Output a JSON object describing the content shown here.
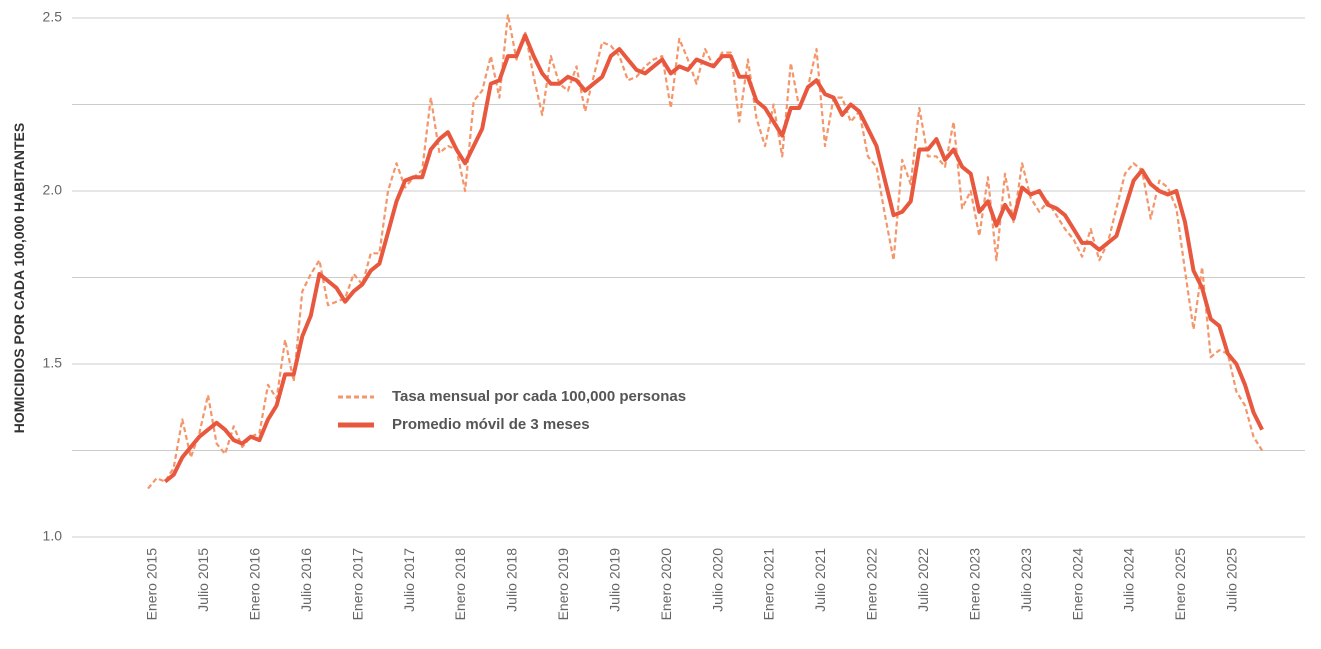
{
  "chart_data": {
    "type": "line",
    "y_label": "HOMICIDIOS POR CADA 100,000 HABITANTES",
    "categories": [
      "Enero 2015",
      null,
      null,
      null,
      null,
      null,
      "Julio 2015",
      null,
      null,
      null,
      null,
      null,
      "Enero 2016",
      null,
      null,
      null,
      null,
      null,
      "Julio 2016",
      null,
      null,
      null,
      null,
      null,
      "Enero 2017",
      null,
      null,
      null,
      null,
      null,
      "Julio 2017",
      null,
      null,
      null,
      null,
      null,
      "Enero 2018",
      null,
      null,
      null,
      null,
      null,
      "Julio 2018",
      null,
      null,
      null,
      null,
      null,
      "Enero 2019",
      null,
      null,
      null,
      null,
      null,
      "Julio 2019",
      null,
      null,
      null,
      null,
      null,
      "Enero 2020",
      null,
      null,
      null,
      null,
      null,
      "Julio 2020",
      null,
      null,
      null,
      null,
      null,
      "Enero 2021",
      null,
      null,
      null,
      null,
      null,
      "Julio 2021",
      null,
      null,
      null,
      null,
      null,
      "Enero 2022",
      null,
      null,
      null,
      null,
      null,
      "Julio 2022",
      null,
      null,
      null,
      null,
      null,
      "Enero 2023",
      null,
      null,
      null,
      null,
      null,
      "Julio 2023",
      null,
      null,
      null,
      null,
      null,
      "Enero 2024",
      null,
      null,
      null,
      null,
      null,
      "Julio 2024",
      null,
      null,
      null,
      null,
      null,
      "Enero 2025",
      null,
      null,
      null,
      null,
      null,
      "Julio 2025",
      null,
      null,
      null,
      null
    ],
    "series": [
      {
        "name": "Tasa mensual por cada 100,000 personas",
        "color": "#f4956a",
        "style": "dashed",
        "values": [
          1.14,
          1.17,
          1.16,
          1.2,
          1.34,
          1.23,
          1.3,
          1.41,
          1.27,
          1.24,
          1.32,
          1.26,
          1.29,
          1.3,
          1.44,
          1.4,
          1.57,
          1.45,
          1.71,
          1.76,
          1.8,
          1.67,
          1.68,
          1.69,
          1.76,
          1.73,
          1.82,
          1.82,
          2.0,
          2.08,
          2.01,
          2.04,
          2.06,
          2.27,
          2.11,
          2.13,
          2.12,
          2.0,
          2.26,
          2.29,
          2.39,
          2.27,
          2.51,
          2.38,
          2.46,
          2.33,
          2.22,
          2.39,
          2.31,
          2.29,
          2.36,
          2.23,
          2.33,
          2.43,
          2.42,
          2.39,
          2.32,
          2.33,
          2.36,
          2.38,
          2.39,
          2.24,
          2.44,
          2.38,
          2.31,
          2.41,
          2.36,
          2.4,
          2.4,
          2.2,
          2.38,
          2.21,
          2.13,
          2.25,
          2.1,
          2.37,
          2.24,
          2.3,
          2.41,
          2.13,
          2.27,
          2.27,
          2.2,
          2.23,
          2.1,
          2.07,
          1.93,
          1.8,
          2.09,
          2.02,
          2.24,
          2.1,
          2.1,
          2.07,
          2.2,
          1.95,
          2.0,
          1.87,
          2.04,
          1.8,
          2.05,
          1.91,
          2.08,
          1.98,
          1.94,
          1.97,
          1.93,
          1.89,
          1.86,
          1.81,
          1.89,
          1.8,
          1.85,
          1.95,
          2.05,
          2.08,
          2.06,
          1.92,
          2.03,
          2.01,
          1.95,
          1.77,
          1.6,
          1.78,
          1.52,
          1.54,
          1.53,
          1.42,
          1.38,
          1.29,
          1.25
        ]
      },
      {
        "name": "Promedio móvil de 3 meses",
        "color": "#e8583e",
        "style": "solid",
        "values": [
          null,
          null,
          1.16,
          1.18,
          1.23,
          1.26,
          1.29,
          1.31,
          1.33,
          1.31,
          1.28,
          1.27,
          1.29,
          1.28,
          1.34,
          1.38,
          1.47,
          1.47,
          1.58,
          1.64,
          1.76,
          1.74,
          1.72,
          1.68,
          1.71,
          1.73,
          1.77,
          1.79,
          1.88,
          1.97,
          2.03,
          2.04,
          2.04,
          2.12,
          2.15,
          2.17,
          2.12,
          2.08,
          2.13,
          2.18,
          2.31,
          2.32,
          2.39,
          2.39,
          2.45,
          2.39,
          2.34,
          2.31,
          2.31,
          2.33,
          2.32,
          2.29,
          2.31,
          2.33,
          2.39,
          2.41,
          2.38,
          2.35,
          2.34,
          2.36,
          2.38,
          2.34,
          2.36,
          2.35,
          2.38,
          2.37,
          2.36,
          2.39,
          2.39,
          2.33,
          2.33,
          2.26,
          2.24,
          2.2,
          2.16,
          2.24,
          2.24,
          2.3,
          2.32,
          2.28,
          2.27,
          2.22,
          2.25,
          2.23,
          2.18,
          2.13,
          2.03,
          1.93,
          1.94,
          1.97,
          2.12,
          2.12,
          2.15,
          2.09,
          2.12,
          2.07,
          2.05,
          1.94,
          1.97,
          1.9,
          1.96,
          1.92,
          2.01,
          1.99,
          2.0,
          1.96,
          1.95,
          1.93,
          1.89,
          1.85,
          1.85,
          1.83,
          1.85,
          1.87,
          1.95,
          2.03,
          2.06,
          2.02,
          2.0,
          1.99,
          2.0,
          1.91,
          1.77,
          1.72,
          1.63,
          1.61,
          1.53,
          1.5,
          1.44,
          1.36,
          1.31
        ]
      }
    ],
    "ylim": [
      1.0,
      2.5
    ],
    "yticks": [
      {
        "value": 1,
        "label": "1.0"
      },
      1.5,
      {
        "value": 2,
        "label": "2.0"
      },
      2.5
    ],
    "ygrid_minor": [
      1.25,
      1.75,
      2.25
    ],
    "grid": true
  }
}
